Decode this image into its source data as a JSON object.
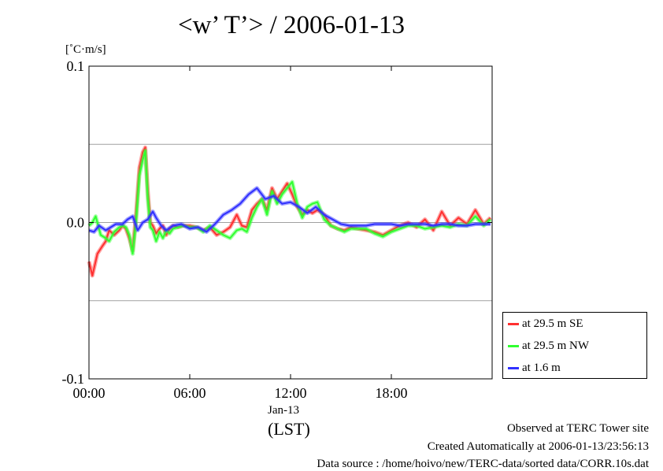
{
  "title": "<w’ T’> / 2006-01-13",
  "unit_label": "[˚C·m/s]",
  "x_date_label": "Jan-13",
  "x_tz_label": "(LST)",
  "footer": {
    "site": "Observed at TERC Tower site",
    "created": "Created Automatically at 2006-01-13/23:56:13",
    "source": "Data source : /home/hoivo/new/TERC-data/sorted  data/CORR.10s.dat"
  },
  "chart_data": {
    "type": "line",
    "title": "<w’ T’> / 2006-01-13",
    "ylabel": "[˚C·m/s]",
    "xlabel": "(LST)",
    "xlim": [
      0,
      24
    ],
    "ylim": [
      -0.1,
      0.1
    ],
    "x_ticks": [
      0,
      6,
      12,
      18
    ],
    "x_tick_labels": [
      "00:00",
      "06:00",
      "12:00",
      "18:00"
    ],
    "y_ticks": [
      -0.1,
      0.0,
      0.1
    ],
    "y_tick_labels": [
      "-0.1",
      "0.0",
      "0.1"
    ],
    "grid": true,
    "legend_position": "bottom-right",
    "series": [
      {
        "name": "at 29.5 m SE",
        "color": "#ff3030",
        "x": [
          0.0,
          0.2,
          0.5,
          0.8,
          1.0,
          1.2,
          1.5,
          1.8,
          2.0,
          2.2,
          2.4,
          2.6,
          2.8,
          3.0,
          3.2,
          3.35,
          3.5,
          3.65,
          3.8,
          4.0,
          4.2,
          4.4,
          4.6,
          4.8,
          5.0,
          5.3,
          5.6,
          6.0,
          6.4,
          6.8,
          7.2,
          7.6,
          8.0,
          8.4,
          8.8,
          9.1,
          9.4,
          9.7,
          10.0,
          10.3,
          10.6,
          10.9,
          11.2,
          11.5,
          11.8,
          12.1,
          12.4,
          12.7,
          13.0,
          13.3,
          13.6,
          14.0,
          14.4,
          14.8,
          15.2,
          15.6,
          16.0,
          16.5,
          17.0,
          17.5,
          18.0,
          18.5,
          19.0,
          19.5,
          20.0,
          20.5,
          21.0,
          21.5,
          22.0,
          22.5,
          23.0,
          23.5,
          23.9
        ],
        "y": [
          -0.025,
          -0.034,
          -0.02,
          -0.015,
          -0.012,
          -0.005,
          -0.008,
          -0.005,
          -0.002,
          -0.004,
          -0.01,
          -0.018,
          0.005,
          0.035,
          0.045,
          0.048,
          0.02,
          0.0,
          -0.002,
          -0.007,
          -0.004,
          -0.002,
          -0.008,
          -0.004,
          -0.002,
          -0.003,
          -0.002,
          -0.002,
          -0.003,
          -0.005,
          -0.003,
          -0.008,
          -0.006,
          -0.003,
          0.005,
          -0.002,
          -0.003,
          0.008,
          0.012,
          0.015,
          0.008,
          0.022,
          0.015,
          0.02,
          0.025,
          0.018,
          0.01,
          0.005,
          0.008,
          0.006,
          0.008,
          0.005,
          -0.002,
          -0.004,
          -0.005,
          -0.003,
          -0.004,
          -0.005,
          -0.006,
          -0.008,
          -0.005,
          -0.002,
          0.0,
          -0.003,
          0.002,
          -0.005,
          0.007,
          -0.002,
          0.003,
          -0.001,
          0.008,
          -0.001,
          0.003
        ]
      },
      {
        "name": "at 29.5 m NW",
        "color": "#30ff30",
        "x": [
          0.0,
          0.2,
          0.4,
          0.7,
          1.0,
          1.2,
          1.5,
          1.8,
          2.0,
          2.2,
          2.4,
          2.6,
          2.8,
          3.0,
          3.2,
          3.35,
          3.5,
          3.65,
          3.8,
          4.0,
          4.2,
          4.4,
          4.6,
          4.8,
          5.0,
          5.3,
          5.6,
          6.0,
          6.4,
          6.8,
          7.2,
          7.6,
          8.0,
          8.4,
          8.8,
          9.1,
          9.4,
          9.7,
          10.0,
          10.3,
          10.6,
          10.9,
          11.2,
          11.5,
          11.8,
          12.1,
          12.4,
          12.7,
          13.0,
          13.3,
          13.6,
          14.0,
          14.4,
          14.8,
          15.2,
          15.6,
          16.0,
          16.5,
          17.0,
          17.5,
          18.0,
          18.5,
          19.0,
          19.5,
          20.0,
          20.5,
          21.0,
          21.5,
          22.0,
          22.5,
          23.0,
          23.5,
          23.9
        ],
        "y": [
          -0.002,
          0.0,
          0.004,
          -0.008,
          -0.01,
          -0.012,
          -0.006,
          -0.003,
          -0.002,
          -0.003,
          -0.008,
          -0.02,
          0.0,
          0.03,
          0.04,
          0.046,
          0.015,
          -0.003,
          -0.005,
          -0.012,
          -0.006,
          -0.01,
          -0.005,
          -0.007,
          -0.004,
          -0.003,
          -0.002,
          -0.003,
          -0.003,
          -0.006,
          -0.002,
          -0.005,
          -0.008,
          -0.01,
          -0.005,
          -0.004,
          -0.006,
          0.003,
          0.01,
          0.015,
          0.005,
          0.02,
          0.012,
          0.018,
          0.022,
          0.026,
          0.012,
          0.003,
          0.01,
          0.012,
          0.013,
          0.002,
          -0.002,
          -0.004,
          -0.006,
          -0.004,
          -0.004,
          -0.004,
          -0.007,
          -0.009,
          -0.006,
          -0.004,
          -0.002,
          -0.002,
          -0.004,
          -0.003,
          -0.002,
          -0.003,
          -0.001,
          -0.002,
          0.004,
          -0.002,
          0.002
        ]
      },
      {
        "name": "at 1.6 m",
        "color": "#3030ff",
        "x": [
          0.0,
          0.3,
          0.6,
          1.0,
          1.3,
          1.6,
          2.0,
          2.3,
          2.6,
          2.9,
          3.2,
          3.5,
          3.8,
          4.0,
          4.3,
          4.6,
          5.0,
          5.5,
          6.0,
          6.5,
          7.0,
          7.5,
          8.0,
          8.5,
          9.0,
          9.5,
          10.0,
          10.5,
          11.0,
          11.5,
          12.0,
          12.5,
          13.0,
          13.5,
          14.0,
          14.5,
          15.0,
          15.5,
          16.0,
          16.5,
          17.0,
          17.5,
          18.0,
          18.5,
          19.0,
          19.5,
          20.0,
          20.5,
          21.0,
          21.5,
          22.0,
          22.5,
          23.0,
          23.5,
          23.9
        ],
        "y": [
          -0.005,
          -0.006,
          -0.002,
          -0.005,
          -0.003,
          -0.001,
          -0.001,
          0.002,
          0.004,
          -0.005,
          0.0,
          0.002,
          0.007,
          0.003,
          -0.002,
          -0.005,
          -0.002,
          -0.001,
          -0.004,
          -0.003,
          -0.006,
          -0.001,
          0.005,
          0.008,
          0.012,
          0.018,
          0.022,
          0.015,
          0.017,
          0.012,
          0.013,
          0.01,
          0.006,
          0.01,
          0.005,
          0.002,
          -0.001,
          -0.002,
          -0.002,
          -0.002,
          -0.001,
          -0.001,
          -0.001,
          -0.002,
          -0.001,
          -0.001,
          -0.001,
          -0.002,
          -0.001,
          -0.001,
          -0.002,
          -0.002,
          -0.001,
          -0.001,
          -0.001
        ]
      }
    ]
  }
}
